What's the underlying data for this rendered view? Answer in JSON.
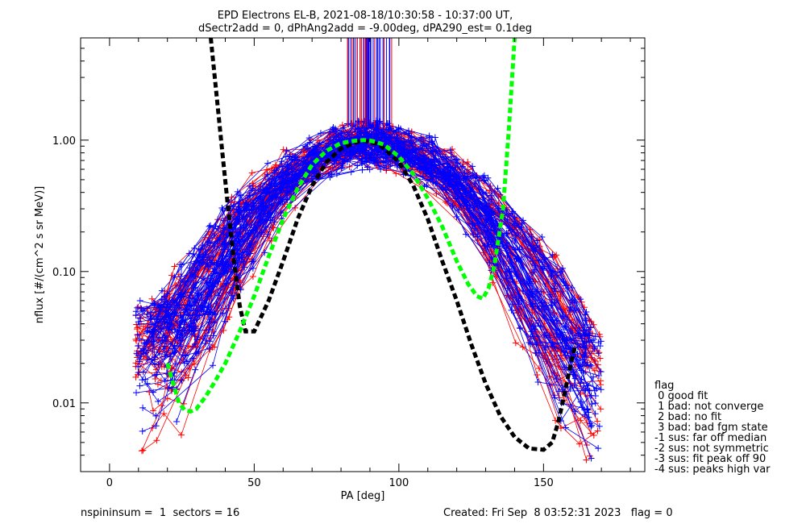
{
  "chart_data": {
    "type": "line",
    "title_line1": "EPD Electrons EL-B, 2021-08-18/10:30:58 - 10:37:00 UT,",
    "title_line2": "dSectr2add = 0, dPhAng2add = -9.00deg, dPA290_est=   0.1deg",
    "xlabel": "PA [deg]",
    "ylabel": "nflux [#/(cm^2 s sr MeV)]",
    "xlim": [
      -10,
      185
    ],
    "ylim_log": [
      0.003,
      6.0
    ],
    "x_ticks": [
      {
        "value": 0,
        "label": "0"
      },
      {
        "value": 50,
        "label": "50"
      },
      {
        "value": 100,
        "label": "100"
      },
      {
        "value": 150,
        "label": "150"
      }
    ],
    "y_ticks": [
      {
        "value": 0.01,
        "label": "0.01"
      },
      {
        "value": 0.1,
        "label": "0.10"
      },
      {
        "value": 1.0,
        "label": "1.00"
      }
    ],
    "series_colors": {
      "red": "#ff0000",
      "blue": "#0000ff",
      "black_fit": "#000000",
      "green_fit": "#00ff00"
    },
    "black_fit": {
      "x": [
        35,
        37,
        39,
        41,
        43,
        45,
        47,
        50,
        55,
        60,
        65,
        70,
        75,
        80,
        85,
        88,
        90,
        93,
        95,
        100,
        105,
        110,
        115,
        120,
        125,
        130,
        135,
        140,
        145,
        150,
        153,
        155,
        157,
        159,
        161
      ],
      "y": [
        6.0,
        2.2,
        0.8,
        0.3,
        0.12,
        0.055,
        0.035,
        0.035,
        0.06,
        0.12,
        0.25,
        0.45,
        0.68,
        0.86,
        0.96,
        0.99,
        0.97,
        0.93,
        0.86,
        0.68,
        0.45,
        0.25,
        0.12,
        0.06,
        0.028,
        0.014,
        0.008,
        0.0055,
        0.0045,
        0.0044,
        0.005,
        0.007,
        0.011,
        0.018,
        0.028
      ]
    },
    "green_fit": {
      "x": [
        20,
        22,
        24,
        26,
        28,
        30,
        33,
        36,
        40,
        45,
        50,
        55,
        60,
        65,
        70,
        75,
        80,
        85,
        88,
        90,
        92,
        95,
        100,
        105,
        110,
        115,
        120,
        124,
        127,
        129,
        131,
        133,
        136,
        138,
        140
      ],
      "y": [
        0.02,
        0.014,
        0.01,
        0.0088,
        0.0086,
        0.009,
        0.011,
        0.014,
        0.02,
        0.035,
        0.065,
        0.13,
        0.25,
        0.43,
        0.65,
        0.83,
        0.95,
        0.99,
        1.0,
        0.99,
        0.97,
        0.92,
        0.75,
        0.55,
        0.36,
        0.22,
        0.12,
        0.08,
        0.065,
        0.062,
        0.075,
        0.11,
        0.3,
        1.2,
        6.0
      ]
    },
    "legend": {
      "title": "flag",
      "entries": [
        " 0 good fit",
        " 1 bad: not converge",
        " 2 bad: no fit",
        " 3 bad: bad fgm state",
        "-1 sus: far off median",
        "-2 sus: not symmetric",
        "-3 sus: fit peak off 90",
        "-4 sus: peaks high var"
      ]
    },
    "footer": {
      "left": "nspininsum =  1  sectors = 16",
      "right": "Created: Fri Sep  8 03:52:31 2023   flag = 0"
    }
  }
}
